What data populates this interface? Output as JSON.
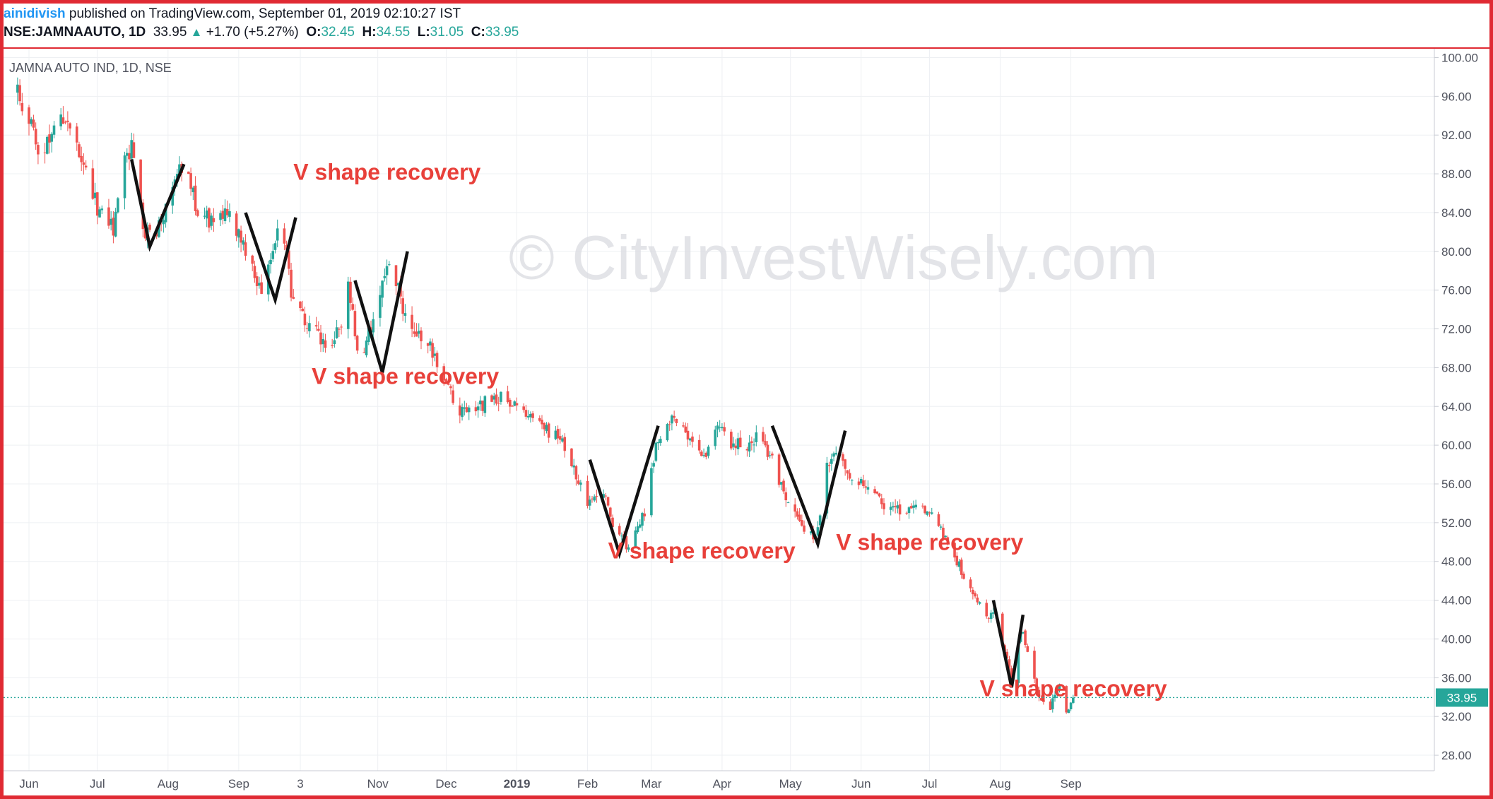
{
  "header": {
    "author": "ainidivish",
    "published": "published on TradingView.com, September 01, 2019 02:10:27 IST",
    "symbol": "NSE:JAMNAAUTO, 1D",
    "last": "33.95",
    "change": "+1.70 (+5.27%)",
    "o_label": "O:",
    "o_value": "32.45",
    "h_label": "H:",
    "h_value": "34.55",
    "l_label": "L:",
    "l_value": "31.05",
    "c_label": "C:",
    "c_value": "33.95"
  },
  "colors": {
    "up": "#26a69a",
    "down": "#ef5350",
    "annotation": "#e8403a",
    "frame": "#e02a33",
    "price_line": "#26a69a"
  },
  "chart_data": {
    "type": "candlestick",
    "title": "JAMNA AUTO IND, 1D, NSE",
    "watermark": "© CityInvestWisely.com",
    "ylim": [
      26.4,
      101.2
    ],
    "y_ticks": [
      "100.00",
      "96.00",
      "92.00",
      "88.00",
      "84.00",
      "80.00",
      "76.00",
      "72.00",
      "68.00",
      "64.00",
      "60.00",
      "56.00",
      "52.00",
      "48.00",
      "44.00",
      "40.00",
      "36.00",
      "32.00",
      "28.00"
    ],
    "x_ticks": [
      "Jun",
      "Jul",
      "Aug",
      "Sep",
      "3",
      "Nov",
      "Dec",
      "2019",
      "Feb",
      "Mar",
      "Apr",
      "May",
      "Jun",
      "Jul",
      "Aug",
      "Sep"
    ],
    "x_tick_days": [
      0,
      30,
      61,
      92,
      119,
      153,
      183,
      214,
      245,
      273,
      304,
      334,
      365,
      395,
      426,
      457
    ],
    "last_price": 33.95,
    "last_price_label": "33.95",
    "close_path": [
      {
        "d": -5,
        "p": 96.5
      },
      {
        "d": 0,
        "p": 94
      },
      {
        "d": 5,
        "p": 88.5
      },
      {
        "d": 9,
        "p": 91.5
      },
      {
        "d": 12,
        "p": 95
      },
      {
        "d": 15,
        "p": 93
      },
      {
        "d": 20,
        "p": 91.5
      },
      {
        "d": 26,
        "p": 87
      },
      {
        "d": 31,
        "p": 84
      },
      {
        "d": 37,
        "p": 82.5
      },
      {
        "d": 41,
        "p": 88.5
      },
      {
        "d": 45,
        "p": 90.5
      },
      {
        "d": 51,
        "p": 81.5
      },
      {
        "d": 56,
        "p": 82.5
      },
      {
        "d": 66,
        "p": 88
      },
      {
        "d": 70,
        "p": 87.5
      },
      {
        "d": 74,
        "p": 84
      },
      {
        "d": 82,
        "p": 83
      },
      {
        "d": 87,
        "p": 84.5
      },
      {
        "d": 95,
        "p": 80
      },
      {
        "d": 102,
        "p": 75.5
      },
      {
        "d": 106,
        "p": 79
      },
      {
        "d": 111,
        "p": 83
      },
      {
        "d": 115,
        "p": 76
      },
      {
        "d": 121,
        "p": 73
      },
      {
        "d": 125,
        "p": 72
      },
      {
        "d": 130,
        "p": 70
      },
      {
        "d": 136,
        "p": 72
      },
      {
        "d": 140,
        "p": 76
      },
      {
        "d": 145,
        "p": 69
      },
      {
        "d": 150,
        "p": 72
      },
      {
        "d": 157,
        "p": 79
      },
      {
        "d": 162,
        "p": 76
      },
      {
        "d": 165,
        "p": 73
      },
      {
        "d": 174,
        "p": 71
      },
      {
        "d": 183,
        "p": 66
      },
      {
        "d": 189,
        "p": 63.5
      },
      {
        "d": 198,
        "p": 64
      },
      {
        "d": 205,
        "p": 65
      },
      {
        "d": 213,
        "p": 64
      },
      {
        "d": 225,
        "p": 62
      },
      {
        "d": 235,
        "p": 60
      },
      {
        "d": 241,
        "p": 56.5
      },
      {
        "d": 244,
        "p": 54
      },
      {
        "d": 252,
        "p": 55.5
      },
      {
        "d": 256,
        "p": 52
      },
      {
        "d": 263,
        "p": 49.5
      },
      {
        "d": 270,
        "p": 53
      },
      {
        "d": 275,
        "p": 60
      },
      {
        "d": 280,
        "p": 62.5
      },
      {
        "d": 286,
        "p": 63
      },
      {
        "d": 291,
        "p": 60
      },
      {
        "d": 297,
        "p": 58.5
      },
      {
        "d": 302,
        "p": 62
      },
      {
        "d": 307,
        "p": 60.5
      },
      {
        "d": 315,
        "p": 59.5
      },
      {
        "d": 320,
        "p": 61
      },
      {
        "d": 327,
        "p": 58
      },
      {
        "d": 332,
        "p": 54
      },
      {
        "d": 339,
        "p": 52
      },
      {
        "d": 345,
        "p": 50
      },
      {
        "d": 350,
        "p": 58
      },
      {
        "d": 355,
        "p": 59.5
      },
      {
        "d": 360,
        "p": 57
      },
      {
        "d": 369,
        "p": 56
      },
      {
        "d": 377,
        "p": 53
      },
      {
        "d": 385,
        "p": 53.5
      },
      {
        "d": 391,
        "p": 54
      },
      {
        "d": 396,
        "p": 53
      },
      {
        "d": 403,
        "p": 50
      },
      {
        "d": 410,
        "p": 46.5
      },
      {
        "d": 418,
        "p": 43
      },
      {
        "d": 425,
        "p": 42
      },
      {
        "d": 431,
        "p": 35.5
      },
      {
        "d": 435,
        "p": 41
      },
      {
        "d": 439,
        "p": 38.5
      },
      {
        "d": 442,
        "p": 34.5
      },
      {
        "d": 448,
        "p": 33
      },
      {
        "d": 452,
        "p": 35
      },
      {
        "d": 455,
        "p": 32.5
      },
      {
        "d": 458,
        "p": 33.95
      }
    ],
    "annotations": [
      {
        "text": "V shape recovery",
        "d": 116,
        "p": 87.4
      },
      {
        "text": "V shape recovery",
        "d": 124,
        "p": 66.3
      },
      {
        "text": "V shape recovery",
        "d": 254,
        "p": 48.3
      },
      {
        "text": "V shape recovery",
        "d": 354,
        "p": 49.2
      },
      {
        "text": "V shape recovery",
        "d": 417,
        "p": 34.1
      }
    ],
    "v_patterns": [
      [
        {
          "d": 45,
          "p": 89.5
        },
        {
          "d": 53,
          "p": 80.5
        },
        {
          "d": 68,
          "p": 89
        }
      ],
      [
        {
          "d": 95,
          "p": 84
        },
        {
          "d": 108,
          "p": 75
        },
        {
          "d": 117,
          "p": 83.5
        }
      ],
      [
        {
          "d": 143,
          "p": 77
        },
        {
          "d": 155,
          "p": 67.5
        },
        {
          "d": 166,
          "p": 80
        }
      ],
      [
        {
          "d": 246,
          "p": 58.5
        },
        {
          "d": 259,
          "p": 48.8
        },
        {
          "d": 276,
          "p": 62
        }
      ],
      [
        {
          "d": 326,
          "p": 62
        },
        {
          "d": 346,
          "p": 49.8
        },
        {
          "d": 358,
          "p": 61.5
        }
      ],
      [
        {
          "d": 423,
          "p": 44
        },
        {
          "d": 431,
          "p": 35
        },
        {
          "d": 436,
          "p": 42.5
        }
      ]
    ]
  }
}
